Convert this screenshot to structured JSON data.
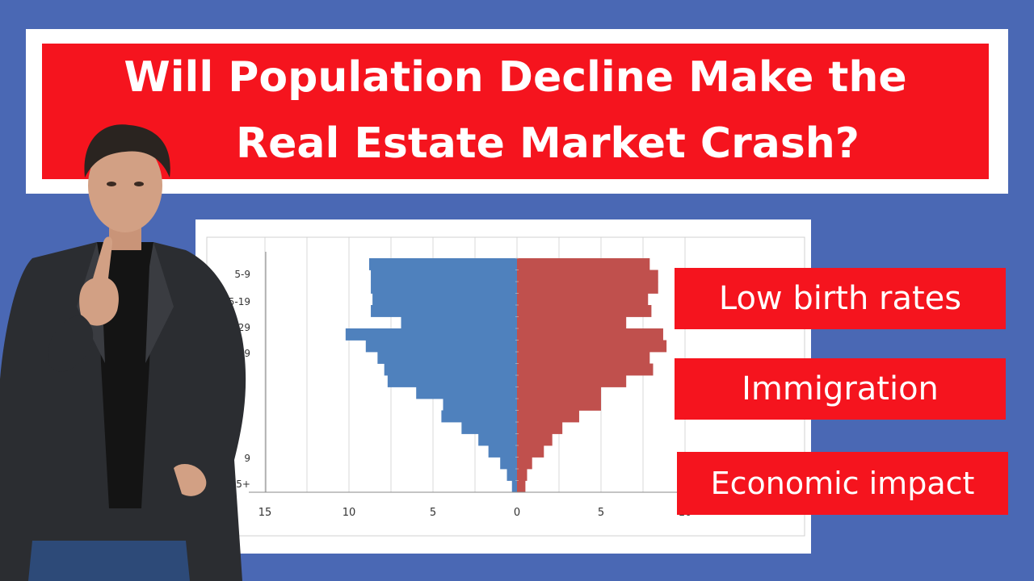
{
  "title": {
    "line1": "Will Population Decline Make the",
    "line2": "Real Estate Market Crash?"
  },
  "callouts": [
    "Low birth rates",
    "Immigration",
    "Economic impact"
  ],
  "chart_data": {
    "type": "bar",
    "orientation": "horizontal",
    "layout": "population-pyramid",
    "y_tick_labels": [
      "5-9",
      "15-19",
      "-29",
      "39",
      "9",
      "5+"
    ],
    "x_tick_labels": [
      "15",
      "10",
      "5",
      "0",
      "5",
      "10"
    ],
    "xlim": [
      -15,
      10
    ],
    "series": [
      {
        "color": "#4f81bd",
        "values": [
          -8.8,
          -8.7,
          -8.7,
          -8.6,
          -8.7,
          -6.9,
          -10.2,
          -9.0,
          -8.3,
          -7.9,
          -7.7,
          -6.0,
          -4.4,
          -4.5,
          -3.3,
          -2.3,
          -1.7,
          -1.0,
          -0.6,
          -0.3
        ]
      },
      {
        "color": "#c0504d",
        "values": [
          7.9,
          8.4,
          8.4,
          7.8,
          8.0,
          6.5,
          8.7,
          8.9,
          7.9,
          8.1,
          6.5,
          5.0,
          5.0,
          3.7,
          2.7,
          2.1,
          1.6,
          0.9,
          0.6,
          0.5
        ]
      }
    ],
    "grid": "vertical-minor"
  },
  "colors": {
    "background": "#4a68b4",
    "accent_red": "#f5141e",
    "male_bar": "#4f81bd",
    "female_bar": "#c0504d"
  }
}
